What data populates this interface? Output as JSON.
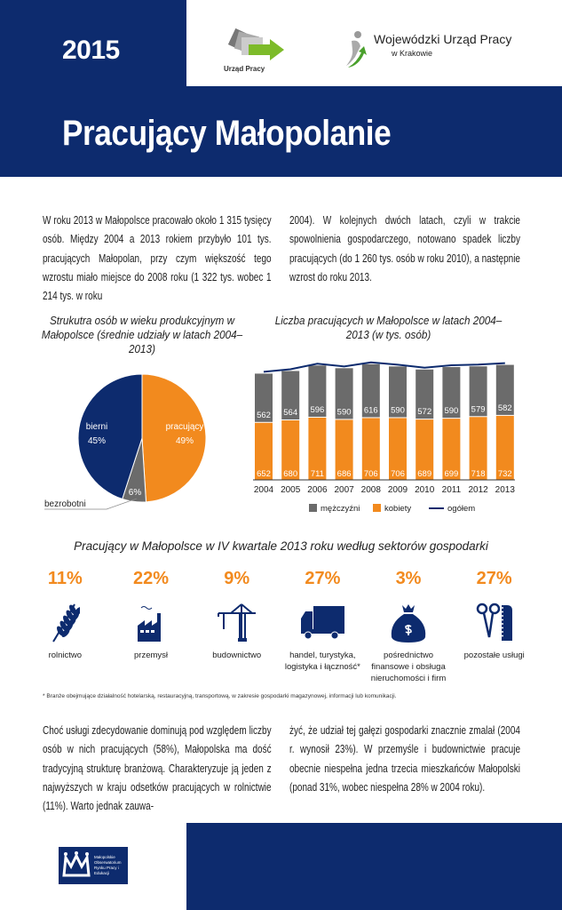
{
  "header": {
    "year": "2015",
    "title": "Pracujący Małopolanie",
    "logo1": "Urząd Pracy",
    "logo2_line1": "Wojewódzki Urząd Pracy",
    "logo2_line2": "w Krakowie"
  },
  "intro": {
    "col1": "W roku 2013 w Małopolsce pracowało około 1 315 tysięcy osób. Między 2004 a 2013 rokiem przybyło 101 tys. pracujących Małopolan, przy czym większość tego wzrostu miało miejsce do 2008 roku (1 322 tys. wobec 1 214 tys. w roku",
    "col2": "2004). W kolejnych dwóch latach, czyli w trakcie spowolnienia gospodarczego, notowano spadek liczby pracujących (do 1 260 tys. osób w roku 2010), a następnie wzrost do roku 2013."
  },
  "chart_data": [
    {
      "type": "pie",
      "title": "Strukutra osób w wieku produkcyjnym w Małopolsce (średnie udziały w latach 2004–2013)",
      "slices": [
        {
          "label": "pracujący",
          "value": 49,
          "text": "49%",
          "color": "#f28a1e"
        },
        {
          "label": "bezrobotni",
          "value": 6,
          "text": "6%",
          "color": "#6b6b6b"
        },
        {
          "label": "bierni",
          "value": 45,
          "text": "45%",
          "color": "#0d2b6e"
        }
      ]
    },
    {
      "type": "bar",
      "title": "Liczba pracujących w Małopolsce w latach 2004–2013 (w tys. osób)",
      "categories": [
        "2004",
        "2005",
        "2006",
        "2007",
        "2008",
        "2009",
        "2010",
        "2011",
        "2012",
        "2013"
      ],
      "series": [
        {
          "name": "kobiety",
          "color": "#f28a1e",
          "values": [
            652,
            680,
            711,
            686,
            706,
            706,
            689,
            699,
            718,
            732
          ]
        },
        {
          "name": "mężczyźni",
          "color": "#6b6b6b",
          "values": [
            562,
            564,
            596,
            590,
            616,
            590,
            572,
            590,
            579,
            582
          ]
        }
      ],
      "line": {
        "name": "ogółem",
        "color": "#0d2b6e",
        "values": [
          1214,
          1244,
          1307,
          1276,
          1322,
          1296,
          1261,
          1289,
          1297,
          1314
        ]
      },
      "legend": [
        "mężczyźni",
        "kobiety",
        "ogółem"
      ],
      "stacked": true,
      "ylim": [
        0,
        1330
      ]
    }
  ],
  "sectors": {
    "title": "Pracujący w Małopolsce w IV kwartale 2013 roku według sektorów gospodarki",
    "items": [
      {
        "pct": "11%",
        "name": "rolnictwo",
        "icon": "wheat-icon"
      },
      {
        "pct": "22%",
        "name": "przemysł",
        "icon": "factory-icon"
      },
      {
        "pct": "9%",
        "name": "budownictwo",
        "icon": "crane-icon"
      },
      {
        "pct": "27%",
        "name": "handel, turystyka, logistyka i łączność*",
        "icon": "truck-icon"
      },
      {
        "pct": "3%",
        "name": "pośrednictwo finansowe i obsługa nieruchomości i firm",
        "icon": "money-bag-icon"
      },
      {
        "pct": "27%",
        "name": "pozostałe usługi",
        "icon": "scissors-comb-icon"
      }
    ],
    "footnote": "* Branże obejmujące działalność hotelarską, restauracyjną, transportową, w zakresie gospodarki magazynowej, informacji lub komunikacji."
  },
  "outro": {
    "col1": "Choć usługi zdecydowanie dominują pod względem liczby osób w nich pracujących (58%), Małopolska ma dość tradycyjną strukturę branżową. Charakteryzuje ją jeden z najwyższych w kraju odsetków pracujących w rolnictwie (11%). Warto jednak zauwa-",
    "col2": "żyć, że udział tej gałęzi gospodarki znacznie zmalał (2004 r. wynosił 23%). W przemyśle i budownictwie pracuje obecnie niespełna jedna trzecia mieszkańców Małopolski (ponad 31%, wobec niespełna 28% w 2004 roku)."
  },
  "footer": {
    "logo": "Małopolskie Obserwatorium Rynku Pracy i Edukacji"
  }
}
